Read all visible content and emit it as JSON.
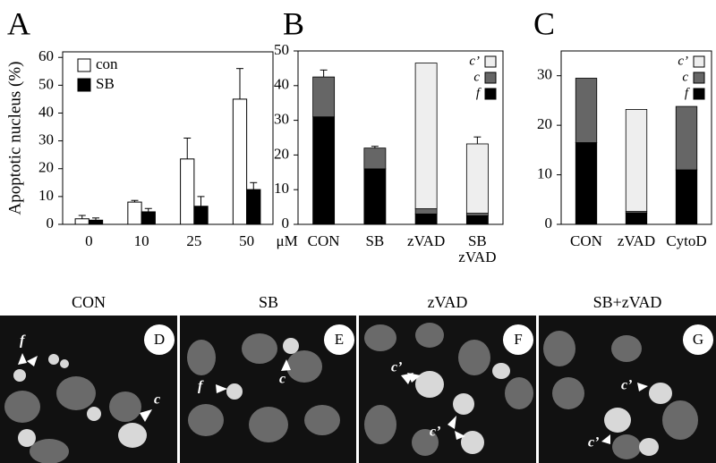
{
  "chart_data": [
    {
      "type": "bar",
      "panel": "A",
      "y_label": "Apoptotic nucleus (%)",
      "x_label": "μM",
      "categories": [
        "0",
        "10",
        "25",
        "50"
      ],
      "series": [
        {
          "name": "con",
          "color": "#ffffff",
          "values": [
            2,
            8,
            23.5,
            45
          ],
          "errors": [
            1.2,
            0.6,
            7.5,
            11
          ]
        },
        {
          "name": "SB",
          "color": "#000000",
          "values": [
            1.5,
            4.5,
            6.5,
            12.5
          ],
          "errors": [
            0.8,
            1.2,
            3.5,
            2.5
          ]
        }
      ],
      "ylim": [
        0,
        62
      ],
      "yticks": [
        0,
        10,
        20,
        30,
        40,
        50,
        60
      ],
      "legend": "top-left"
    },
    {
      "type": "stacked_bar",
      "panel": "B",
      "categories": [
        "CON",
        "SB",
        "zVAD",
        "SB zVAD"
      ],
      "series": [
        {
          "name": "f",
          "color": "#000000",
          "values": [
            31,
            16,
            3,
            2.5
          ]
        },
        {
          "name": "c",
          "color": "#666666",
          "values": [
            11.5,
            6,
            1.5,
            0.7
          ]
        },
        {
          "name": "c’",
          "color": "#eeeeee",
          "values": [
            0,
            0,
            42,
            20
          ]
        }
      ],
      "errors": [
        2,
        0.5,
        null,
        2
      ],
      "ylim": [
        0,
        50
      ],
      "yticks": [
        0,
        10,
        20,
        30,
        40,
        50
      ],
      "legend": "top-right"
    },
    {
      "type": "stacked_bar",
      "panel": "C",
      "categories": [
        "CON",
        "zVAD",
        "CytoD"
      ],
      "series": [
        {
          "name": "f",
          "color": "#000000",
          "values": [
            16.5,
            2.3,
            11
          ]
        },
        {
          "name": "c",
          "color": "#666666",
          "values": [
            13,
            0.3,
            12.8
          ]
        },
        {
          "name": "c’",
          "color": "#eeeeee",
          "values": [
            0,
            20.6,
            0
          ]
        }
      ],
      "ylim": [
        0,
        35
      ],
      "yticks": [
        0,
        10,
        20,
        30
      ],
      "legend": "top-right"
    }
  ],
  "images": [
    {
      "title": "CON",
      "panel": "D",
      "markers": [
        "f",
        "c"
      ]
    },
    {
      "title": "SB",
      "panel": "E",
      "markers": [
        "f",
        "c"
      ]
    },
    {
      "title": "zVAD",
      "panel": "F",
      "markers": [
        "c’",
        "c’"
      ]
    },
    {
      "title": "SB+zVAD",
      "panel": "G",
      "markers": [
        "c’",
        "c’"
      ]
    }
  ]
}
